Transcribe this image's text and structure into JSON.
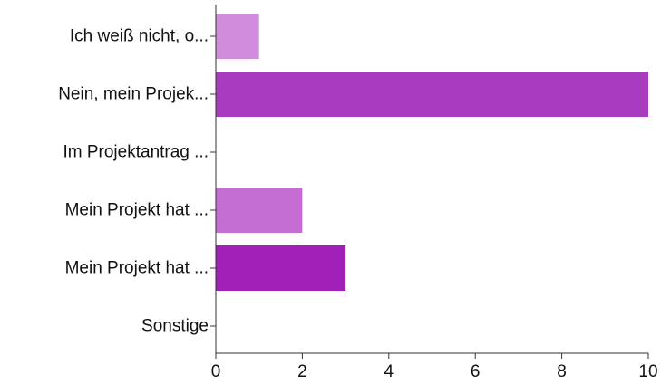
{
  "chart_data": {
    "type": "bar",
    "orientation": "horizontal",
    "categories": [
      "Ich weiß nicht, o...",
      "Nein, mein Projek...",
      "Im Projektantrag ...",
      "Mein Projekt hat ...",
      "Mein Projekt hat ...",
      "Sonstige"
    ],
    "values": [
      1,
      10,
      0,
      2,
      3,
      0
    ],
    "bar_colors": [
      "#cf8ddc",
      "#a93bbf",
      "#b34dc6",
      "#c46dd2",
      "#a01fb7",
      "#b050c8"
    ],
    "x_ticks": [
      "0",
      "2",
      "4",
      "6",
      "8",
      "10"
    ],
    "xlim": [
      0,
      10
    ],
    "grid": false,
    "title": "",
    "xlabel": "",
    "ylabel": ""
  }
}
